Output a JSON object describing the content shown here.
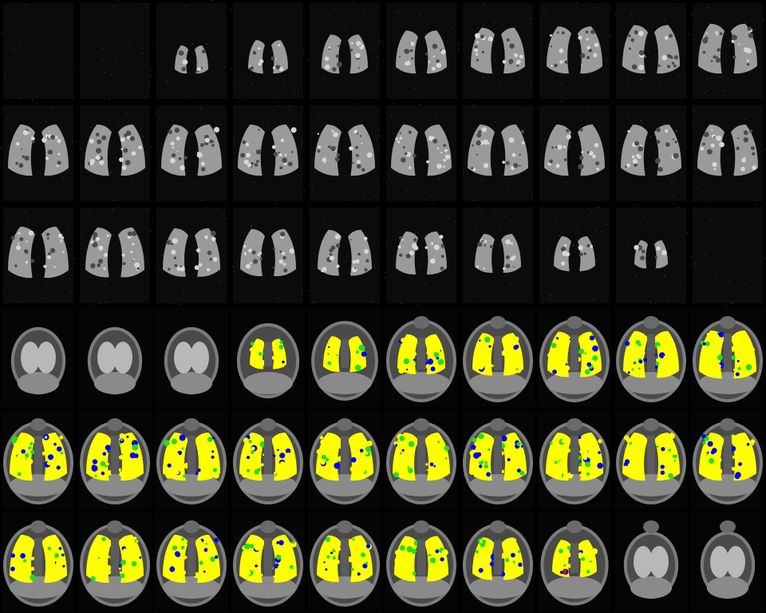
{
  "montage": {
    "rows": 6,
    "cols": 10,
    "overlay_colors": {
      "yellow": "#ffff00",
      "green": "#22dd22",
      "blue": "#0000ff",
      "red": "#ff0000"
    },
    "row_types": [
      "ventilation",
      "ventilation",
      "ventilation",
      "anatomy",
      "anatomy",
      "anatomy"
    ],
    "lung_extent": [
      [
        0.0,
        0.0,
        0.15,
        0.35,
        0.55,
        0.7,
        0.8,
        0.85,
        0.9,
        0.95
      ],
      [
        1.0,
        1.0,
        1.0,
        1.0,
        1.0,
        1.0,
        1.0,
        1.0,
        1.0,
        1.0
      ],
      [
        1.0,
        0.95,
        0.9,
        0.85,
        0.8,
        0.7,
        0.55,
        0.4,
        0.15,
        0.0
      ],
      [
        0.0,
        0.0,
        0.0,
        0.35,
        0.55,
        0.7,
        0.8,
        0.9,
        0.95,
        1.0
      ],
      [
        1.0,
        1.0,
        1.0,
        1.0,
        1.0,
        1.0,
        1.0,
        1.0,
        1.0,
        1.0
      ],
      [
        1.0,
        1.0,
        1.0,
        1.0,
        0.95,
        0.9,
        0.8,
        0.6,
        0.0,
        0.0
      ]
    ]
  }
}
